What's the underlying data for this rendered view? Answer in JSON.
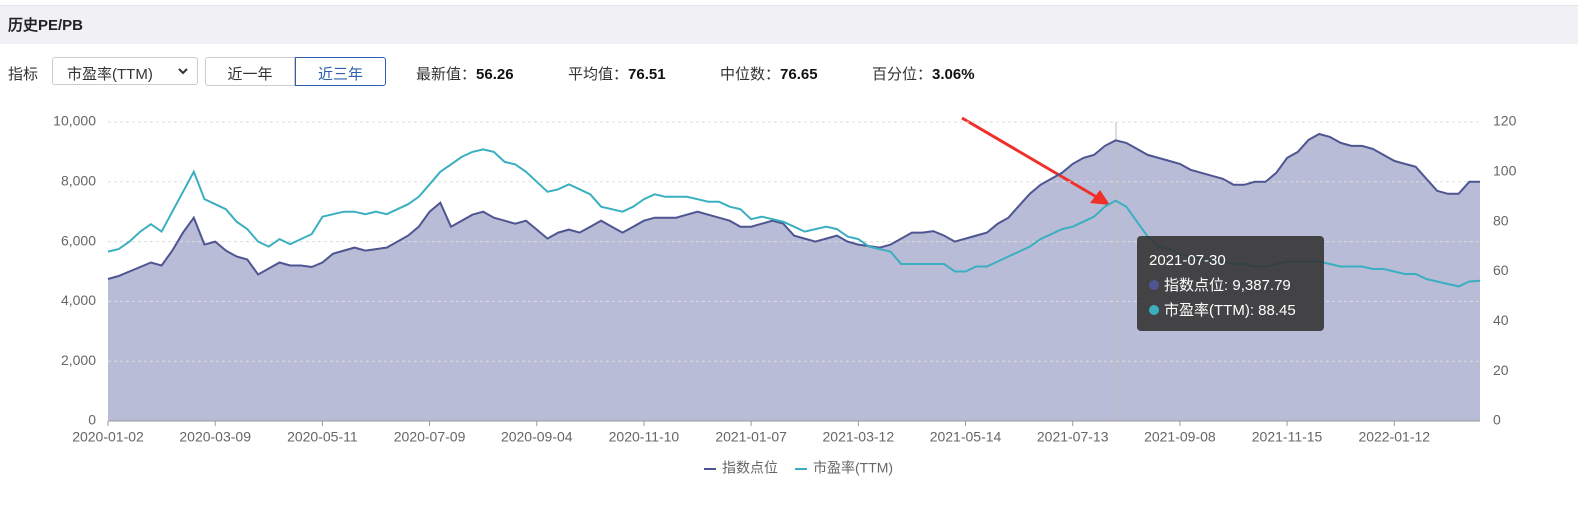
{
  "header": {
    "title": "历史PE/PB"
  },
  "controls": {
    "indicator_label": "指标",
    "select": "市盈率(TTM)",
    "buttons": [
      {
        "label": "近一年",
        "active": false
      },
      {
        "label": "近三年",
        "active": true
      }
    ]
  },
  "stats": [
    {
      "label": "最新值：",
      "value": "56.26"
    },
    {
      "label": "平均值：",
      "value": "76.51"
    },
    {
      "label": "中位数：",
      "value": "76.65"
    },
    {
      "label": "百分位：",
      "value": "3.06%"
    }
  ],
  "chart_data": {
    "type": "line",
    "categories": [
      "2020-01-02",
      null,
      null,
      null,
      null,
      null,
      null,
      null,
      null,
      null,
      "2020-03-09",
      null,
      null,
      null,
      null,
      null,
      null,
      null,
      null,
      null,
      "2020-05-11",
      null,
      null,
      null,
      null,
      null,
      null,
      null,
      null,
      null,
      "2020-07-09",
      null,
      null,
      null,
      null,
      null,
      null,
      null,
      null,
      null,
      "2020-09-04",
      null,
      null,
      null,
      null,
      null,
      null,
      null,
      null,
      null,
      "2020-11-10",
      null,
      null,
      null,
      null,
      null,
      null,
      null,
      null,
      null,
      "2021-01-07",
      null,
      null,
      null,
      null,
      null,
      null,
      null,
      null,
      null,
      "2021-03-12",
      null,
      null,
      null,
      null,
      null,
      null,
      null,
      null,
      null,
      "2021-05-14",
      null,
      null,
      null,
      null,
      null,
      null,
      null,
      null,
      null,
      "2021-07-13",
      null,
      null,
      null,
      null,
      null,
      null,
      null,
      null,
      null,
      "2021-09-08",
      null,
      null,
      null,
      null,
      null,
      null,
      null,
      null,
      null,
      "2021-11-15",
      null,
      null,
      null,
      null,
      null,
      null,
      null,
      null,
      null,
      "2022-01-12",
      null,
      null,
      null,
      null,
      null,
      null,
      null,
      null
    ],
    "series": [
      {
        "name": "指数点位",
        "color": "#4e5591",
        "area_color": "#b8bcd6",
        "axis": "y",
        "values": [
          4750,
          4850,
          5000,
          5150,
          5300,
          5200,
          5700,
          6300,
          6800,
          5900,
          6000,
          5700,
          5500,
          5400,
          4900,
          5100,
          5300,
          5200,
          5200,
          5150,
          5300,
          5600,
          5700,
          5800,
          5700,
          5750,
          5800,
          6000,
          6200,
          6500,
          7000,
          7300,
          6500,
          6700,
          6900,
          7000,
          6800,
          6700,
          6600,
          6700,
          6400,
          6100,
          6300,
          6400,
          6300,
          6500,
          6700,
          6500,
          6300,
          6500,
          6700,
          6800,
          6800,
          6800,
          6900,
          7000,
          6900,
          6800,
          6700,
          6500,
          6500,
          6600,
          6700,
          6600,
          6200,
          6100,
          6000,
          6100,
          6200,
          6000,
          5900,
          5850,
          5800,
          5900,
          6100,
          6300,
          6300,
          6350,
          6200,
          6000,
          6100,
          6200,
          6300,
          6600,
          6800,
          7200,
          7600,
          7900,
          8100,
          8300,
          8600,
          8800,
          8900,
          9200,
          9387.79,
          9300,
          9100,
          8900,
          8800,
          8700,
          8600,
          8400,
          8300,
          8200,
          8100,
          7900,
          7900,
          8000,
          8000,
          8300,
          8800,
          9000,
          9400,
          9600,
          9500,
          9300,
          9200,
          9200,
          9100,
          8900,
          8700,
          8600,
          8500,
          8100,
          7700,
          7600,
          7600,
          8000,
          8000
        ]
      },
      {
        "name": "市盈率(TTM)",
        "color": "#3aafc0",
        "axis": "y2",
        "values": [
          68,
          69,
          72,
          76,
          79,
          76,
          84,
          92,
          100,
          89,
          87,
          85,
          80,
          77,
          72,
          70,
          73,
          71,
          73,
          75,
          82,
          83,
          84,
          84,
          83,
          84,
          83,
          85,
          87,
          90,
          95,
          100,
          103,
          106,
          108,
          109,
          108,
          104,
          103,
          100,
          96,
          92,
          93,
          95,
          93,
          91,
          86,
          85,
          84,
          86,
          89,
          91,
          90,
          90,
          90,
          89,
          88,
          88,
          86,
          85,
          81,
          82,
          81,
          80,
          78,
          76,
          77,
          78,
          77,
          74,
          73,
          70,
          69,
          68,
          63,
          63,
          63,
          63,
          63,
          60,
          60,
          62,
          62,
          64,
          66,
          68,
          70,
          73,
          75,
          77,
          78,
          80,
          82,
          86,
          88.45,
          86,
          80,
          74,
          70,
          69,
          67,
          66,
          65,
          64,
          64,
          63,
          63,
          62,
          62,
          63,
          64,
          64,
          64,
          64,
          63,
          62,
          62,
          62,
          61,
          61,
          60,
          59,
          59,
          57,
          56,
          55,
          54,
          56,
          56.26
        ]
      }
    ],
    "ylim": [
      0,
      10000
    ],
    "yticks": [
      0,
      {
        "value": 2000,
        "label": "2,000"
      },
      {
        "value": 4000,
        "label": "4,000"
      },
      {
        "value": 6000,
        "label": "6,000"
      },
      {
        "value": 8000,
        "label": "8,000"
      },
      {
        "value": 10000,
        "label": "10,000"
      }
    ],
    "y2lim": [
      0,
      120
    ],
    "y2ticks": [
      0,
      20,
      40,
      60,
      80,
      100,
      120
    ],
    "grid": true,
    "legend": "bottom",
    "tooltip": {
      "date": "2021-07-30",
      "value_labels": [
        "9,387.79",
        "88.45"
      ]
    }
  }
}
